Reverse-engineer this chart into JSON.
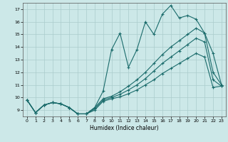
{
  "title": "",
  "xlabel": "Humidex (Indice chaleur)",
  "ylabel": "",
  "bg_color": "#cce8e8",
  "grid_color": "#aacccc",
  "line_color": "#1a6b6b",
  "xlim": [
    -0.5,
    23.5
  ],
  "ylim": [
    8.5,
    17.5
  ],
  "xticks": [
    0,
    1,
    2,
    3,
    4,
    5,
    6,
    7,
    8,
    9,
    10,
    11,
    12,
    13,
    14,
    15,
    16,
    17,
    18,
    19,
    20,
    21,
    22,
    23
  ],
  "yticks": [
    9,
    10,
    11,
    12,
    13,
    14,
    15,
    16,
    17
  ],
  "series": [
    {
      "x": [
        0,
        1,
        2,
        3,
        4,
        5,
        6,
        7,
        8,
        9,
        10,
        11,
        12,
        13,
        14,
        15,
        16,
        17,
        18,
        19,
        20,
        21,
        22,
        23
      ],
      "y": [
        9.8,
        8.8,
        9.4,
        9.6,
        9.5,
        9.2,
        8.7,
        8.7,
        9.2,
        10.5,
        13.8,
        15.1,
        12.4,
        13.8,
        16.0,
        15.0,
        16.6,
        17.3,
        16.3,
        16.5,
        16.2,
        15.1,
        13.5,
        11.0
      ]
    },
    {
      "x": [
        0,
        1,
        2,
        3,
        4,
        5,
        6,
        7,
        8,
        9,
        10,
        11,
        12,
        13,
        14,
        15,
        16,
        17,
        18,
        19,
        20,
        21,
        22,
        23
      ],
      "y": [
        9.8,
        8.8,
        9.4,
        9.6,
        9.5,
        9.2,
        8.7,
        8.7,
        9.2,
        9.9,
        10.1,
        10.45,
        10.9,
        11.4,
        12.0,
        12.7,
        13.4,
        14.0,
        14.5,
        15.0,
        15.5,
        15.1,
        12.0,
        11.0
      ]
    },
    {
      "x": [
        0,
        1,
        2,
        3,
        4,
        5,
        6,
        7,
        8,
        9,
        10,
        11,
        12,
        13,
        14,
        15,
        16,
        17,
        18,
        19,
        20,
        21,
        22,
        23
      ],
      "y": [
        9.8,
        8.8,
        9.4,
        9.6,
        9.5,
        9.2,
        8.7,
        8.7,
        9.1,
        9.8,
        10.0,
        10.25,
        10.6,
        11.0,
        11.5,
        12.1,
        12.7,
        13.2,
        13.7,
        14.2,
        14.7,
        14.4,
        11.4,
        10.9
      ]
    },
    {
      "x": [
        0,
        1,
        2,
        3,
        4,
        5,
        6,
        7,
        8,
        9,
        10,
        11,
        12,
        13,
        14,
        15,
        16,
        17,
        18,
        19,
        20,
        21,
        22,
        23
      ],
      "y": [
        9.8,
        8.8,
        9.4,
        9.6,
        9.5,
        9.2,
        8.7,
        8.7,
        9.0,
        9.7,
        9.9,
        10.05,
        10.3,
        10.6,
        11.0,
        11.4,
        11.9,
        12.3,
        12.7,
        13.1,
        13.5,
        13.2,
        10.8,
        10.9
      ]
    }
  ]
}
